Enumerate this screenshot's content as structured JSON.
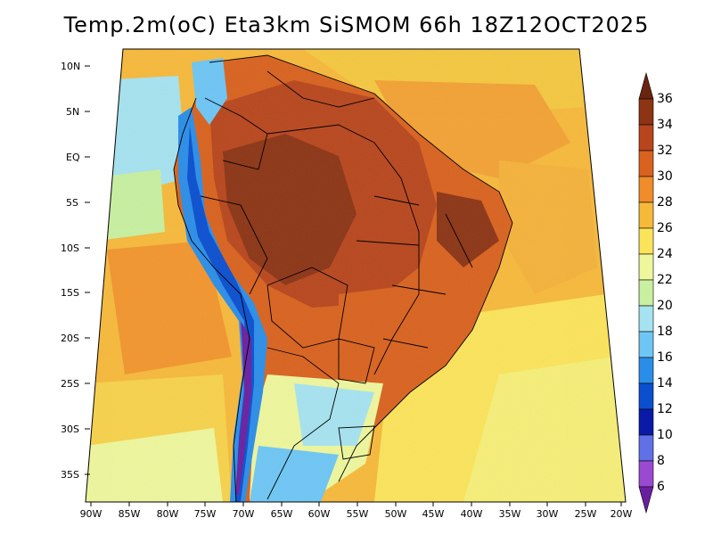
{
  "title": "Temp.2m(oC) Eta3km SiSMOM 66h 18Z12OCT2025",
  "latitude_labels": [
    "10N",
    "5N",
    "EQ",
    "5S",
    "10S",
    "15S",
    "20S",
    "25S",
    "30S",
    "35S"
  ],
  "longitude_labels": [
    "90W",
    "85W",
    "80W",
    "75W",
    "70W",
    "65W",
    "60W",
    "55W",
    "50W",
    "45W",
    "40W",
    "35W",
    "30W",
    "25W",
    "20W"
  ],
  "colorbar": {
    "levels": [
      "36",
      "34",
      "32",
      "30",
      "28",
      "26",
      "24",
      "22",
      "20",
      "18",
      "16",
      "14",
      "12",
      "10",
      "8",
      "6"
    ],
    "colors": [
      "#6b2410",
      "#8c3414",
      "#b8461c",
      "#d9621e",
      "#f08c2a",
      "#f7b93a",
      "#fbe45a",
      "#eef79c",
      "#c8f0a0",
      "#a6e3f0",
      "#6ec6f5",
      "#2a8ee8",
      "#0a4fd0",
      "#0a1aa8",
      "#6070e6",
      "#9a4ad0",
      "#6a1fa0"
    ]
  },
  "palette": {
    "ocean_warm": "#f5c840",
    "ocean_mid": "#f7a838",
    "ocean_cool": "#fbe45a",
    "ocean_south": "#eef79c",
    "amazon": "#b8461c",
    "brazil_hot": "#8c3414",
    "andes_cold": "#2a8ee8",
    "andes_peak": "#6a1fa0",
    "patagonia": "#a6e3f0",
    "border": "#000000"
  }
}
